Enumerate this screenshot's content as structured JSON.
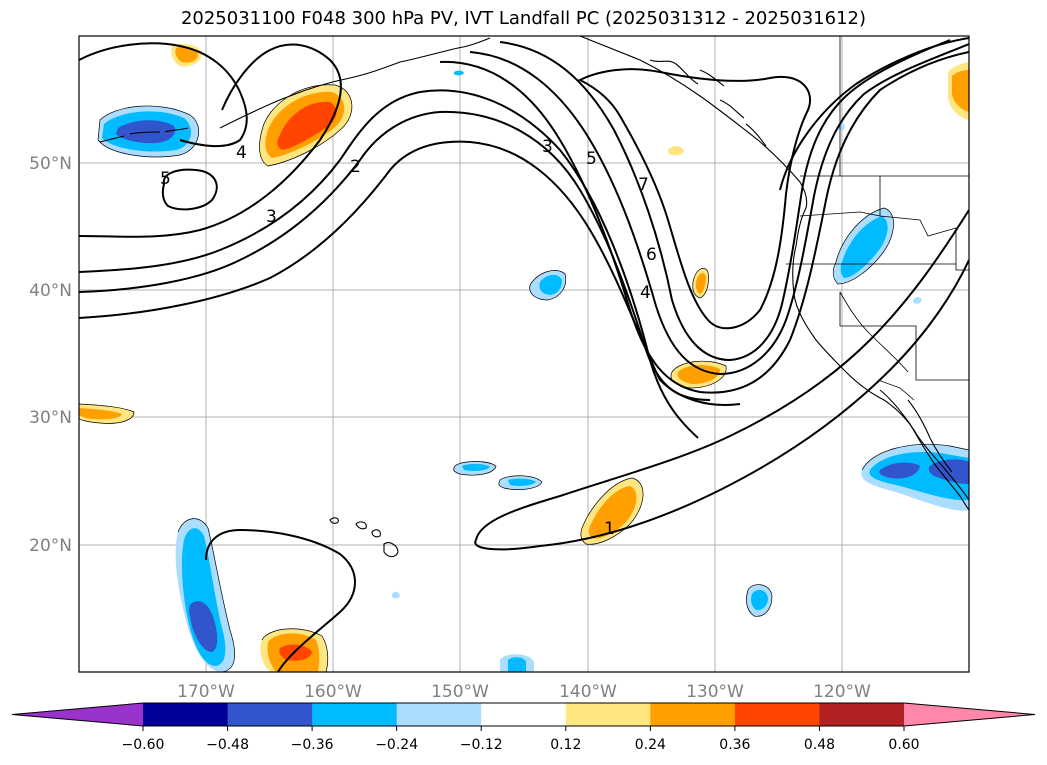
{
  "title": "2025031100 F048 300 hPa PV, IVT Landfall PC (2025031312 - 2025031612)",
  "map": {
    "lon_range": [
      -180,
      -110
    ],
    "lat_range": [
      10,
      60
    ],
    "lat_labels": [
      "50°N",
      "40°N",
      "30°N",
      "20°N"
    ],
    "lon_labels": [
      "170°W",
      "160°W",
      "150°W",
      "140°W",
      "130°W",
      "120°W"
    ],
    "gridlines": true
  },
  "contour_labels": [
    "4",
    "5",
    "3",
    "2",
    "3",
    "5",
    "7",
    "6",
    "4",
    "1"
  ],
  "colorbar": {
    "colors": [
      "#9933cc",
      "#000099",
      "#3355cc",
      "#00bbff",
      "#aaddff",
      "#ffffff",
      "#ffe680",
      "#ffa000",
      "#ff4500",
      "#b22222",
      "#ff88aa"
    ],
    "tick_labels": [
      "−0.60",
      "−0.48",
      "−0.36",
      "−0.24",
      "−0.12",
      "0.12",
      "0.24",
      "0.36",
      "0.48",
      "0.60"
    ],
    "extend": "both"
  }
}
